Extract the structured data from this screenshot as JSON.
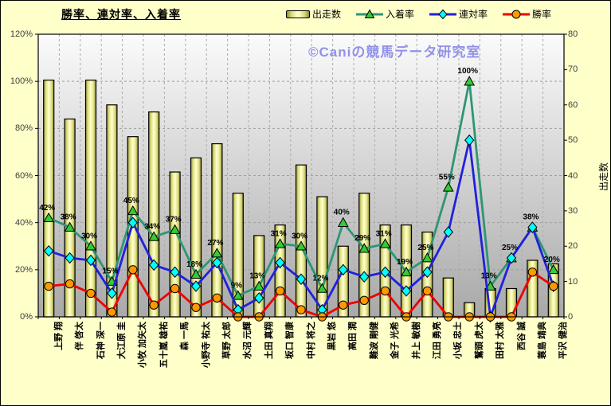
{
  "header": {
    "title": "勝率、連対率、入着率"
  },
  "watermark": {
    "text": "©Caniの競馬データ研究室"
  },
  "legend": [
    {
      "label": "出走数",
      "marker": "bar"
    },
    {
      "label": "入着率",
      "marker": "triangle"
    },
    {
      "label": "連対率",
      "marker": "diamond"
    },
    {
      "label": "勝率",
      "marker": "circle"
    }
  ],
  "colors": {
    "page_bg": "#FFFFC9",
    "plot_bg_top": "#FBFBFB",
    "plot_bg_bottom": "#A9A9A9",
    "bar_edge": "#8C8C33",
    "bar_mid": "#D9D97A",
    "bar_center": "#FCFCC4",
    "placing_line": "#2E9673",
    "placing_marker": "#33CC33",
    "quinella_line": "#2020DD",
    "quinella_marker": "#00FFFF",
    "win_line": "#EE0000",
    "win_marker": "#FF9900",
    "grid_v": "#ABABAB",
    "grid_h": "#9F9F9F",
    "watermark": "#9191EA"
  },
  "chart_data": {
    "type": "combo bar+line",
    "title": "勝率、連対率、入着率",
    "legend_position": "top",
    "grid": true,
    "categories": [
      "上野 翔",
      "伴 啓太",
      "石神 深一",
      "大江原 圭",
      "小牧 加矢太",
      "五十嵐 雄祐",
      "森 一馬",
      "小野寺 祐太",
      "草野 太郎",
      "水沼 元輝",
      "土田 真翔",
      "坂口 智康",
      "中村 将之",
      "黒岩 悠",
      "高田 潤",
      "難波 剛健",
      "金子 光希",
      "井上 敏樹",
      "江田 勇亮",
      "小坂 忠士",
      "鷲頭 虎太",
      "田村 太雅",
      "西谷 誠",
      "蓑島 靖典",
      "平沢 健治"
    ],
    "series": [
      {
        "name": "出走数",
        "type": "bar",
        "axis": "right",
        "values": [
          67,
          56,
          67,
          60,
          51,
          58,
          41,
          45,
          49,
          35,
          23,
          26,
          43,
          34,
          20,
          35,
          26,
          26,
          24,
          11,
          4,
          8,
          8,
          16,
          15
        ]
      },
      {
        "name": "入着率",
        "type": "line",
        "axis": "left",
        "unit": "%",
        "data_labels": true,
        "values": [
          42,
          38,
          30,
          15,
          45,
          34,
          37,
          18,
          27,
          9,
          13,
          31,
          30,
          12,
          40,
          29,
          31,
          19,
          25,
          55,
          100,
          13,
          25,
          38,
          20
        ]
      },
      {
        "name": "連対率",
        "type": "line",
        "axis": "left",
        "unit": "%",
        "data_labels": false,
        "values": [
          28,
          25,
          24,
          10,
          40,
          22,
          19,
          13,
          23,
          3,
          8,
          23,
          16,
          3,
          20,
          17,
          19,
          11,
          19,
          36,
          75,
          0,
          25,
          38,
          13
        ]
      },
      {
        "name": "勝率",
        "type": "line",
        "axis": "left",
        "unit": "%",
        "data_labels": false,
        "values": [
          13,
          14,
          10,
          2,
          20,
          5,
          12,
          4,
          8,
          0,
          0,
          11,
          3,
          0,
          5,
          7,
          11,
          0,
          11,
          0,
          0,
          0,
          0,
          19,
          13
        ]
      }
    ],
    "left_axis": {
      "min": 0,
      "max": 120,
      "step": 20,
      "suffix": "%"
    },
    "right_axis": {
      "min": 0,
      "max": 80,
      "step": 10,
      "title": "出走数"
    }
  }
}
